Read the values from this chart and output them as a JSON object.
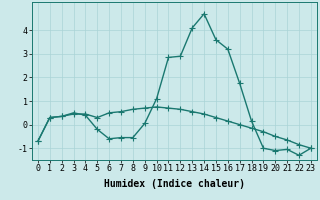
{
  "xlabel": "Humidex (Indice chaleur)",
  "ylabel": "",
  "background_color": "#cce9ea",
  "grid_color": "#aad4d6",
  "line_color": "#1a7870",
  "xlim": [
    -0.5,
    23.5
  ],
  "ylim": [
    -1.5,
    5.2
  ],
  "yticks": [
    -1,
    0,
    1,
    2,
    3,
    4
  ],
  "xticks": [
    0,
    1,
    2,
    3,
    4,
    5,
    6,
    7,
    8,
    9,
    10,
    11,
    12,
    13,
    14,
    15,
    16,
    17,
    18,
    19,
    20,
    21,
    22,
    23
  ],
  "curve1_x": [
    0,
    1,
    2,
    3,
    4,
    5,
    6,
    7,
    8,
    9,
    10,
    11,
    12,
    13,
    14,
    15,
    16,
    17,
    18,
    19,
    20,
    21,
    22,
    23
  ],
  "curve1_y": [
    -0.7,
    0.3,
    0.35,
    0.5,
    0.4,
    -0.2,
    -0.6,
    -0.55,
    -0.55,
    0.05,
    1.1,
    2.85,
    2.9,
    4.1,
    4.7,
    3.6,
    3.2,
    1.75,
    0.15,
    -1.0,
    -1.1,
    -1.05,
    -1.3,
    -1.0
  ],
  "curve2_x": [
    0,
    1,
    2,
    3,
    4,
    5,
    6,
    7,
    8,
    9,
    10,
    11,
    12,
    13,
    14,
    15,
    16,
    17,
    18,
    19,
    20,
    21,
    22,
    23
  ],
  "curve2_y": [
    -0.7,
    0.3,
    0.35,
    0.45,
    0.45,
    0.3,
    0.5,
    0.55,
    0.65,
    0.7,
    0.75,
    0.7,
    0.65,
    0.55,
    0.45,
    0.3,
    0.15,
    0.0,
    -0.15,
    -0.3,
    -0.5,
    -0.65,
    -0.85,
    -1.0
  ],
  "marker": "+",
  "markersize": 4,
  "linewidth": 1.0,
  "fontsize_label": 7,
  "fontsize_tick": 6
}
